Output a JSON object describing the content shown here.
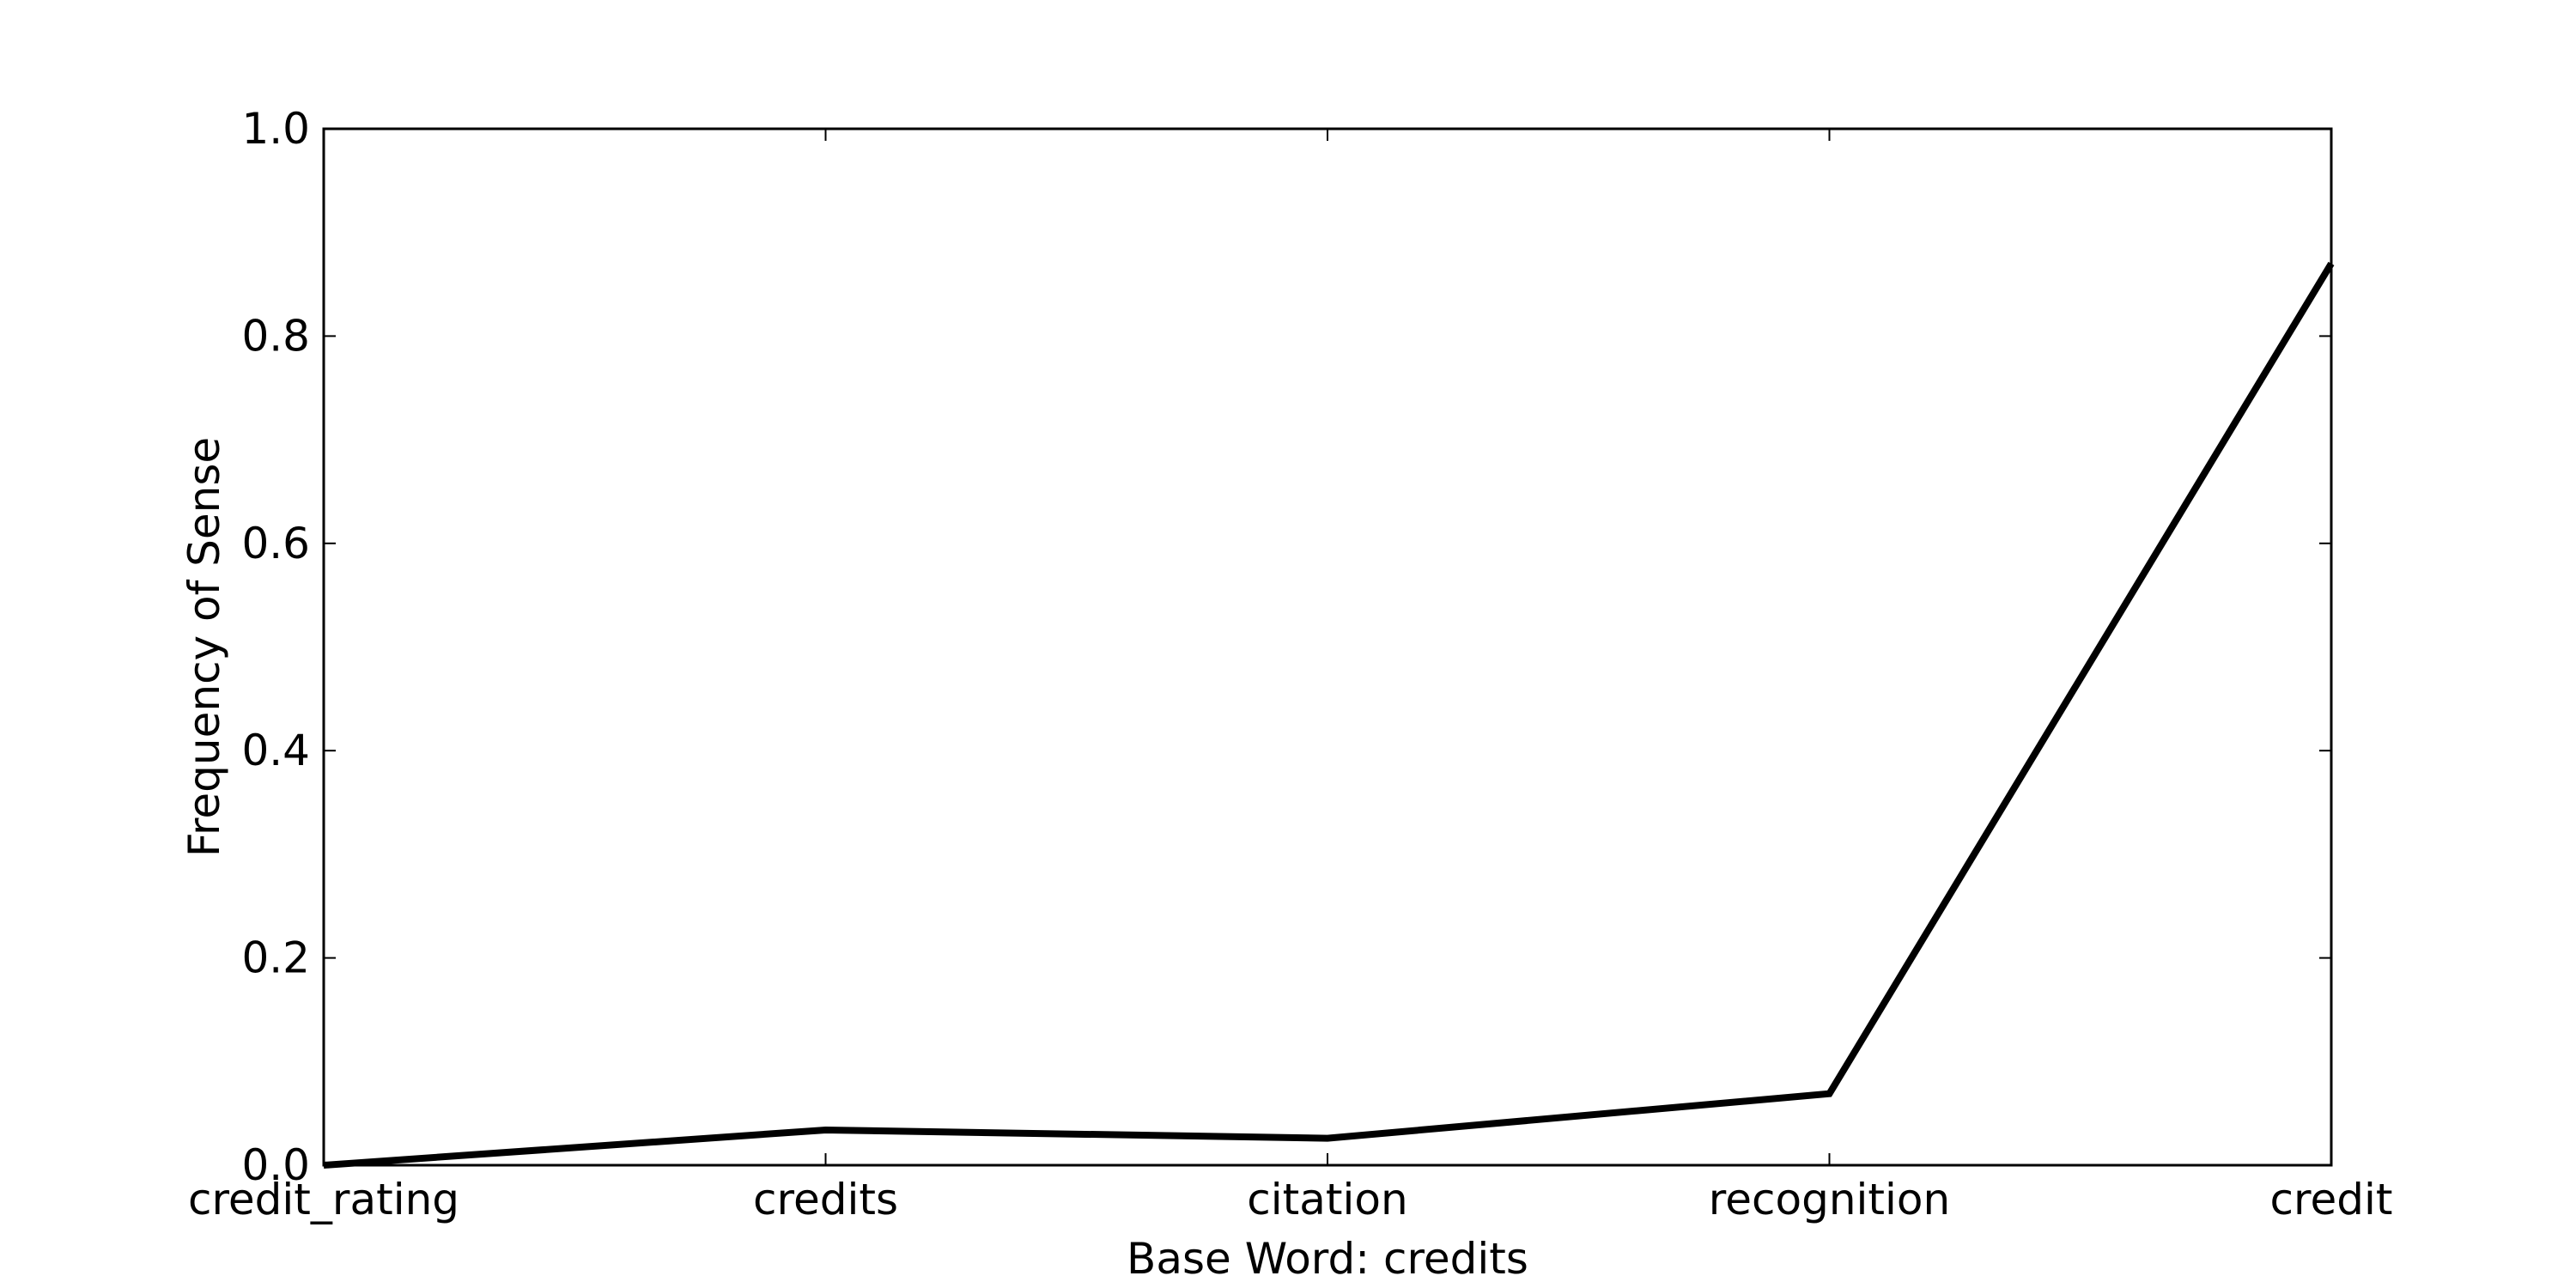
{
  "chart_data": {
    "type": "line",
    "title": "",
    "xlabel": "Base Word: credits",
    "ylabel": "Frequency of Sense",
    "categories": [
      "credit_rating",
      "credits",
      "citation",
      "recognition",
      "credit"
    ],
    "series": [
      {
        "values": [
          0.0,
          0.034,
          0.026,
          0.069,
          0.87
        ]
      }
    ],
    "ylim": [
      0.0,
      1.0
    ],
    "yticks": [
      "0.0",
      "0.2",
      "0.4",
      "0.6",
      "0.8",
      "1.0"
    ],
    "grid": false,
    "legend": "none",
    "line_color": "#000000"
  }
}
